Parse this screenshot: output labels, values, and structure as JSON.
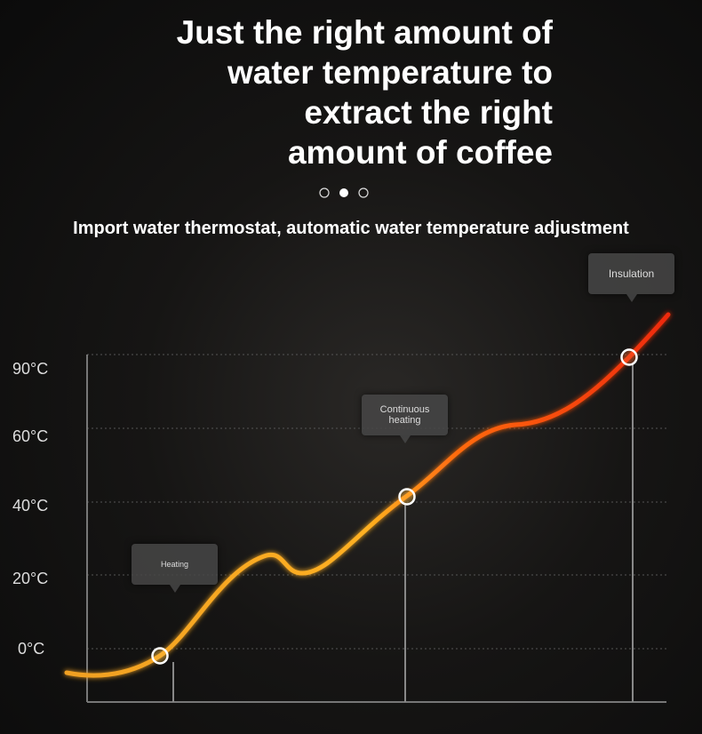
{
  "title": {
    "lines": [
      "Just the right amount of",
      "water temperature to",
      "extract the right",
      "amount of coffee"
    ]
  },
  "subtitle": "Import water thermostat, automatic water temperature adjustment",
  "axis": {
    "labels": [
      "90°C",
      "60°C",
      "40°C",
      "20°C",
      "0°C"
    ]
  },
  "callouts": [
    "Heating",
    "Continuous heating",
    "Insulation"
  ]
}
